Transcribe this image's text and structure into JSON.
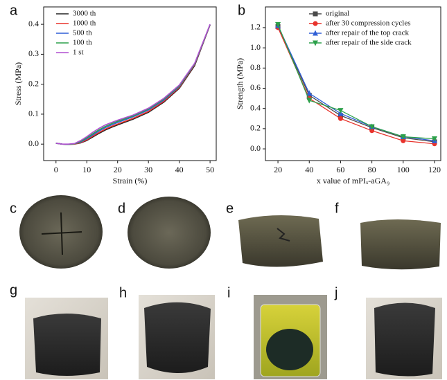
{
  "chart_data": [
    {
      "type": "line",
      "panel_label": "a",
      "x_label": "Strain (%)",
      "y_label": "Stress (MPa)",
      "x": [
        0,
        2,
        4,
        6,
        8,
        10,
        12,
        14,
        16,
        18,
        20,
        25,
        30,
        35,
        40,
        45,
        50
      ],
      "series": [
        {
          "name": "3000 th",
          "color": "#222222",
          "values": [
            0.003,
            0.0,
            -0.001,
            0.0,
            0.004,
            0.012,
            0.024,
            0.036,
            0.047,
            0.056,
            0.064,
            0.083,
            0.106,
            0.14,
            0.186,
            0.262,
            0.398
          ]
        },
        {
          "name": "1000 th",
          "color": "#e8332c",
          "values": [
            0.003,
            0.0,
            -0.001,
            0.0,
            0.005,
            0.014,
            0.027,
            0.039,
            0.05,
            0.059,
            0.067,
            0.086,
            0.109,
            0.143,
            0.189,
            0.265,
            0.398
          ]
        },
        {
          "name": "500 th",
          "color": "#2f5fd6",
          "values": [
            0.003,
            0.0,
            -0.001,
            0.001,
            0.007,
            0.018,
            0.031,
            0.044,
            0.055,
            0.064,
            0.072,
            0.091,
            0.114,
            0.147,
            0.192,
            0.267,
            0.399
          ]
        },
        {
          "name": "100 th",
          "color": "#2ca04a",
          "values": [
            0.003,
            0.0,
            -0.001,
            0.001,
            0.009,
            0.021,
            0.035,
            0.048,
            0.059,
            0.068,
            0.076,
            0.094,
            0.117,
            0.15,
            0.194,
            0.268,
            0.399
          ]
        },
        {
          "name": "1 st",
          "color": "#b04fd1",
          "values": [
            0.003,
            0.0,
            0.0,
            0.002,
            0.012,
            0.025,
            0.04,
            0.053,
            0.064,
            0.072,
            0.08,
            0.097,
            0.12,
            0.153,
            0.197,
            0.27,
            0.4
          ]
        }
      ],
      "xlim": [
        -4,
        52
      ],
      "xticks": [
        0,
        10,
        20,
        30,
        40,
        50
      ],
      "ylim": [
        -0.055,
        0.458
      ],
      "yticks": [
        {
          "value": 0,
          "label": "0.0"
        },
        0.1,
        0.2,
        0.3,
        0.4
      ],
      "legend": "upper-left"
    },
    {
      "type": "line",
      "panel_label": "b",
      "x_label": "x value of mPIₓ-aGA₉",
      "y_label": "Strength (MPa)",
      "x": [
        20,
        40,
        60,
        80,
        100,
        120
      ],
      "series": [
        {
          "name": "original",
          "color": "#4a4a4a",
          "marker": "square",
          "values": [
            1.21,
            0.53,
            0.33,
            0.21,
            0.11,
            0.07
          ]
        },
        {
          "name": "after 30 compression cycles",
          "color": "#e8332c",
          "marker": "circle",
          "values": [
            1.2,
            0.5,
            0.3,
            0.18,
            0.08,
            0.05
          ]
        },
        {
          "name": "after repair of the top crack",
          "color": "#2f5fd6",
          "marker": "triangle-up",
          "values": [
            1.22,
            0.55,
            0.35,
            0.22,
            0.12,
            0.08
          ]
        },
        {
          "name": "after repair of the side crack",
          "color": "#2ca04a",
          "marker": "triangle-down",
          "values": [
            1.23,
            0.48,
            0.38,
            0.22,
            0.12,
            0.1
          ]
        }
      ],
      "xlim": [
        12,
        124
      ],
      "xticks": [
        20,
        40,
        60,
        80,
        100,
        120
      ],
      "ylim": [
        -0.116,
        1.405
      ],
      "yticks": [
        {
          "value": 0,
          "label": "0.0"
        },
        0.2,
        0.4,
        0.6,
        0.8,
        {
          "value": 1,
          "label": "1.0"
        },
        1.2
      ],
      "legend": "upper-right"
    }
  ],
  "photo_panels": [
    "c",
    "d",
    "e",
    "f",
    "g",
    "h",
    "i",
    "j"
  ]
}
